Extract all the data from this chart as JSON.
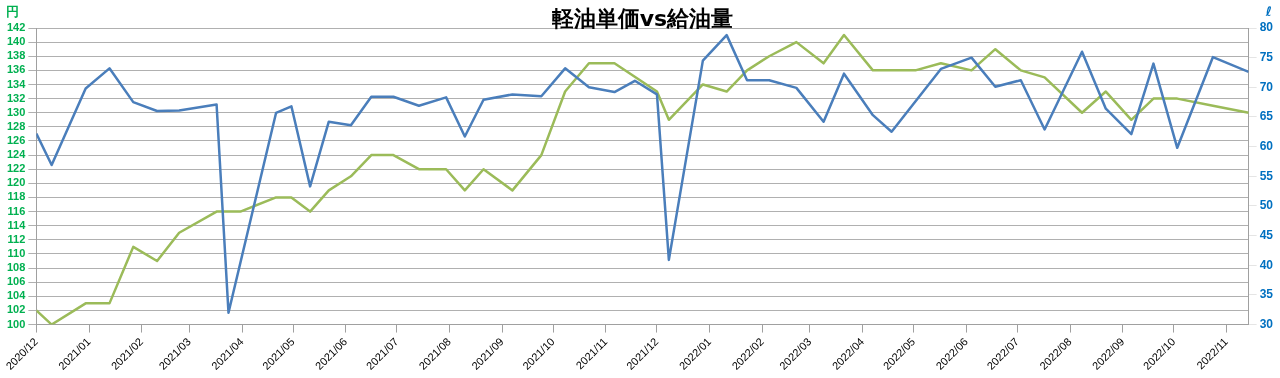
{
  "chart_data": {
    "type": "line",
    "title": "軽油単価vs給油量",
    "ylabel": "円",
    "y2label": "ℓ",
    "xlim": [
      "2020-12-01",
      "2022-11-14"
    ],
    "xticks": [
      {
        "value": "2020-12-01",
        "label": "2020/12"
      },
      {
        "value": "2021-01-01",
        "label": "2021/01"
      },
      {
        "value": "2021-02-01",
        "label": "2021/02"
      },
      {
        "value": "2021-03-01",
        "label": "2021/03"
      },
      {
        "value": "2021-04-01",
        "label": "2021/04"
      },
      {
        "value": "2021-05-01",
        "label": "2021/05"
      },
      {
        "value": "2021-06-01",
        "label": "2021/06"
      },
      {
        "value": "2021-07-01",
        "label": "2021/07"
      },
      {
        "value": "2021-08-01",
        "label": "2021/08"
      },
      {
        "value": "2021-09-01",
        "label": "2021/09"
      },
      {
        "value": "2021-10-01",
        "label": "2021/10"
      },
      {
        "value": "2021-11-01",
        "label": "2021/11"
      },
      {
        "value": "2021-12-01",
        "label": "2021/12"
      },
      {
        "value": "2022-01-01",
        "label": "2022/01"
      },
      {
        "value": "2022-02-01",
        "label": "2022/02"
      },
      {
        "value": "2022-03-01",
        "label": "2022/03"
      },
      {
        "value": "2022-04-01",
        "label": "2022/04"
      },
      {
        "value": "2022-05-01",
        "label": "2022/05"
      },
      {
        "value": "2022-06-01",
        "label": "2022/06"
      },
      {
        "value": "2022-07-01",
        "label": "2022/07"
      },
      {
        "value": "2022-08-01",
        "label": "2022/08"
      },
      {
        "value": "2022-09-01",
        "label": "2022/09"
      },
      {
        "value": "2022-10-01",
        "label": "2022/10"
      },
      {
        "value": "2022-11-01",
        "label": "2022/11"
      }
    ],
    "ylim": [
      100,
      142
    ],
    "yticks": [
      100,
      102,
      104,
      106,
      108,
      110,
      112,
      114,
      116,
      118,
      120,
      122,
      124,
      126,
      128,
      130,
      132,
      134,
      136,
      138,
      140,
      142
    ],
    "y2lim": [
      30,
      80
    ],
    "y2ticks": [
      30,
      35,
      40,
      45,
      50,
      55,
      60,
      65,
      70,
      75,
      80
    ],
    "grid": "y",
    "marker": "none",
    "line_style": "solid",
    "legend": false,
    "series": [
      {
        "color": "#4a7ebb",
        "axis": "y2",
        "x": [
          "2020-12-01",
          "2020-12-10",
          "2020-12-30",
          "2021-01-13",
          "2021-01-27",
          "2021-02-10",
          "2021-02-23",
          "2021-03-17",
          "2021-03-24",
          "2021-04-21",
          "2021-04-30",
          "2021-05-11",
          "2021-05-22",
          "2021-06-04",
          "2021-06-16",
          "2021-06-29",
          "2021-07-14",
          "2021-07-30",
          "2021-08-10",
          "2021-08-21",
          "2021-09-07",
          "2021-09-24",
          "2021-10-08",
          "2021-10-22",
          "2021-11-06",
          "2021-11-18",
          "2021-12-01",
          "2021-12-08",
          "2021-12-28",
          "2022-01-11",
          "2022-01-23",
          "2022-02-05",
          "2022-02-21",
          "2022-03-09",
          "2022-03-21",
          "2022-04-07",
          "2022-04-18",
          "2022-05-17",
          "2022-06-04",
          "2022-06-18",
          "2022-07-03",
          "2022-07-17",
          "2022-08-08",
          "2022-08-22",
          "2022-09-06",
          "2022-09-19",
          "2022-10-03",
          "2022-10-24",
          "2022-11-14"
        ],
        "values": [
          62.2,
          56.9,
          69.8,
          73.2,
          67.5,
          66.0,
          66.1,
          67.1,
          32.0,
          65.7,
          66.8,
          53.3,
          64.2,
          63.6,
          68.4,
          68.4,
          66.9,
          68.3,
          61.7,
          67.9,
          68.8,
          68.5,
          73.2,
          70.0,
          69.2,
          71.1,
          68.8,
          40.9,
          74.5,
          78.8,
          71.2,
          71.2,
          69.9,
          64.2,
          72.3,
          65.3,
          62.5,
          73.1,
          75.0,
          70.1,
          71.2,
          62.9,
          76.0,
          66.4,
          62.1,
          74.0,
          59.8,
          75.1,
          72.6
        ]
      },
      {
        "color": "#9bbb59",
        "axis": "y",
        "x": [
          "2020-12-01",
          "2020-12-10",
          "2020-12-30",
          "2021-01-13",
          "2021-01-27",
          "2021-02-10",
          "2021-02-23",
          "2021-03-17",
          "2021-03-31",
          "2021-04-21",
          "2021-04-30",
          "2021-05-11",
          "2021-05-22",
          "2021-06-04",
          "2021-06-16",
          "2021-06-29",
          "2021-07-14",
          "2021-07-30",
          "2021-08-10",
          "2021-08-21",
          "2021-09-07",
          "2021-09-24",
          "2021-10-08",
          "2021-10-22",
          "2021-11-06",
          "2021-12-01",
          "2021-12-08",
          "2021-12-28",
          "2022-01-11",
          "2022-01-23",
          "2022-02-05",
          "2022-02-21",
          "2022-03-09",
          "2022-03-21",
          "2022-04-07",
          "2022-05-02",
          "2022-05-17",
          "2022-06-04",
          "2022-06-18",
          "2022-07-03",
          "2022-07-17",
          "2022-08-08",
          "2022-08-22",
          "2022-09-06",
          "2022-09-19",
          "2022-10-03",
          "2022-10-24",
          "2022-11-14"
        ],
        "values": [
          102,
          100,
          103,
          103,
          111,
          109,
          113,
          116,
          116,
          118,
          118,
          116,
          119,
          121,
          124,
          124,
          122,
          122,
          119,
          122,
          119,
          124,
          133,
          137,
          137,
          133,
          129,
          134,
          133,
          136,
          138,
          140,
          137,
          141,
          136,
          136,
          137,
          136,
          139,
          136,
          135,
          130,
          133,
          129,
          132,
          132,
          131,
          130
        ]
      }
    ]
  }
}
